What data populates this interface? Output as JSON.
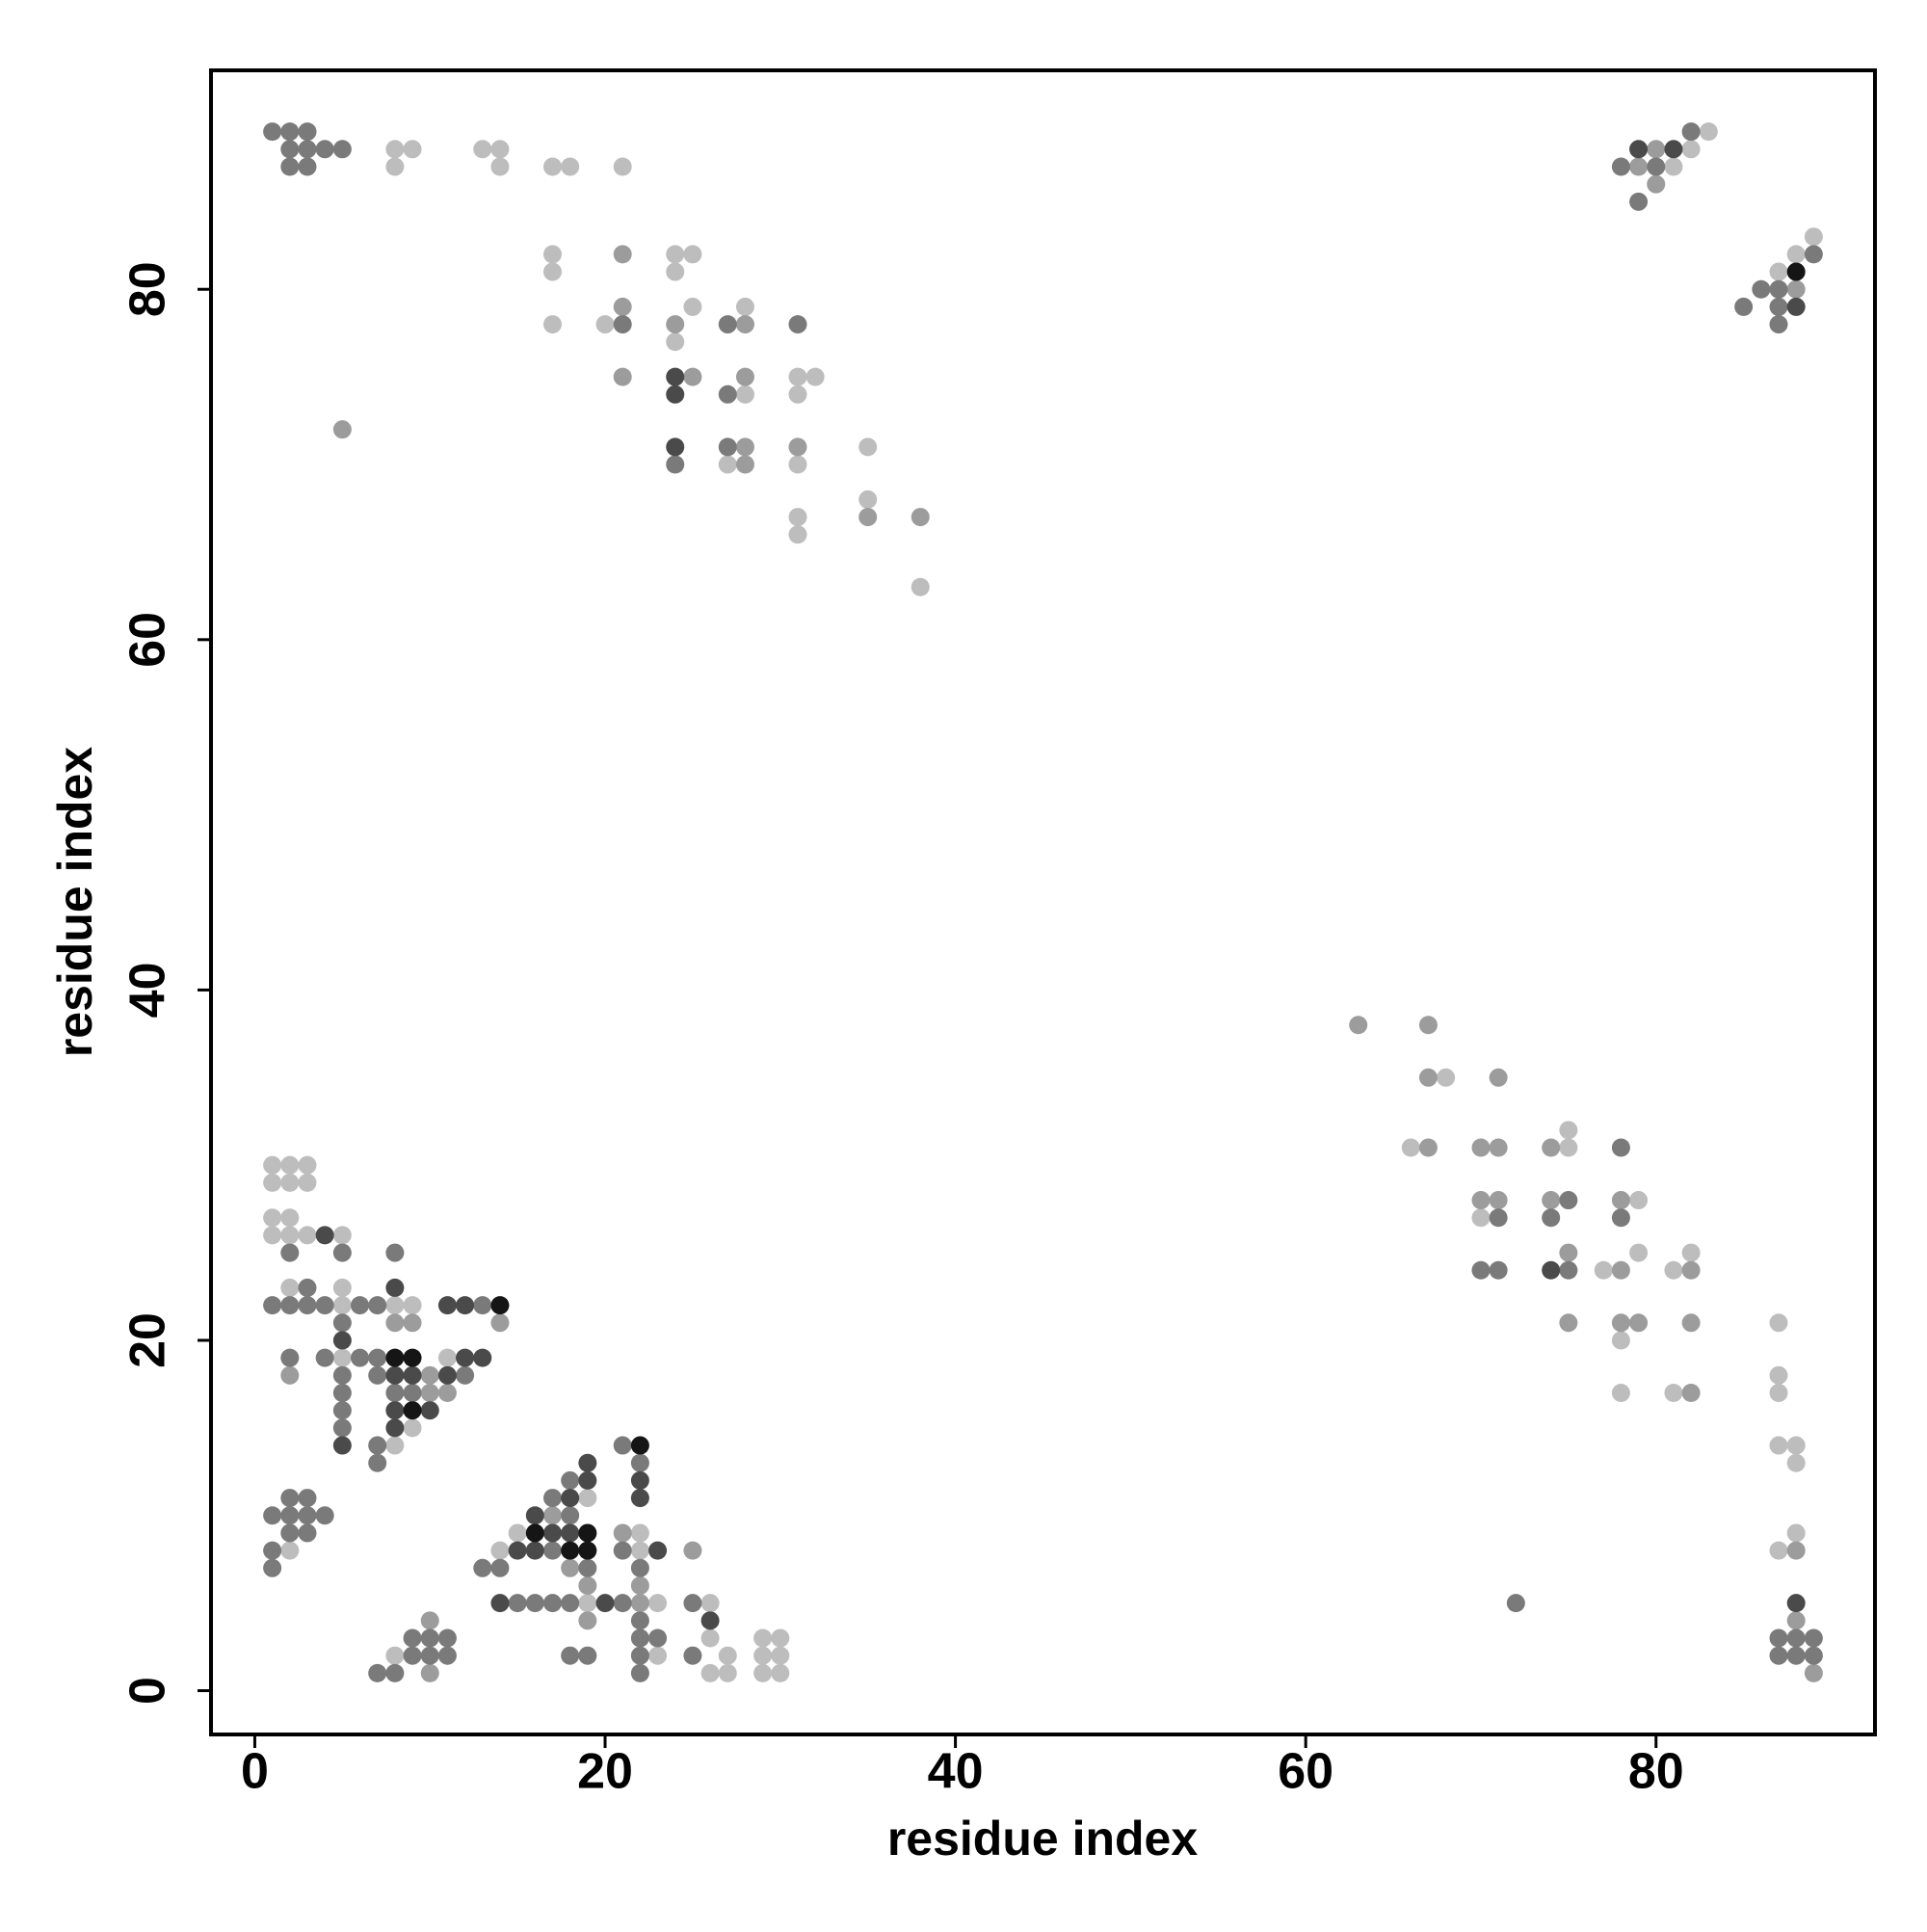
{
  "chart_data": {
    "type": "scatter",
    "xlabel": "residue index",
    "ylabel": "residue index",
    "xlim": [
      -2.5,
      92.5
    ],
    "ylim": [
      -2.5,
      92.5
    ],
    "xticks": [
      0,
      20,
      40,
      60,
      80
    ],
    "yticks": [
      0,
      20,
      40,
      60,
      80
    ],
    "grid": false,
    "series": [
      {
        "color": "#bdbdbd",
        "x": [
          8,
          9,
          13,
          14,
          8,
          14,
          17,
          18,
          21,
          24,
          25,
          17,
          17,
          24,
          25,
          28,
          17,
          20,
          24,
          31,
          32,
          28,
          31,
          35,
          27,
          31,
          35,
          31,
          31,
          38,
          83,
          82,
          81,
          89,
          88,
          87,
          68,
          75,
          66,
          75,
          79,
          70,
          79,
          82,
          77,
          81,
          87,
          78,
          87,
          78,
          81,
          87,
          87,
          88,
          88,
          88,
          87,
          1,
          2,
          3,
          1,
          2,
          3,
          1,
          2,
          1,
          2,
          3,
          5,
          2,
          5,
          5,
          8,
          9,
          5,
          11,
          9,
          8,
          19,
          15,
          22,
          2,
          14,
          22,
          19,
          23,
          26,
          26,
          29,
          30,
          8,
          23,
          27,
          29,
          30,
          26,
          27,
          29,
          30
        ],
        "y": [
          88,
          88,
          88,
          88,
          87,
          87,
          87,
          87,
          87,
          82,
          82,
          82,
          81,
          81,
          79,
          79,
          78,
          78,
          77,
          75,
          75,
          74,
          74,
          71,
          70,
          70,
          68,
          67,
          66,
          63,
          89,
          88,
          87,
          83,
          82,
          81,
          35,
          32,
          31,
          31,
          28,
          27,
          25,
          25,
          24,
          24,
          21,
          20,
          18,
          17,
          17,
          17,
          14,
          14,
          13,
          9,
          8,
          30,
          30,
          30,
          29,
          29,
          29,
          27,
          27,
          26,
          26,
          26,
          26,
          23,
          23,
          22,
          22,
          22,
          19,
          19,
          15,
          14,
          11,
          9,
          9,
          8,
          8,
          8,
          5,
          5,
          5,
          3,
          3,
          3,
          2,
          2,
          2,
          2,
          2,
          1,
          1,
          1,
          1
        ]
      },
      {
        "color": "#9c9c9c",
        "x": [
          21,
          21,
          24,
          28,
          21,
          25,
          28,
          28,
          31,
          28,
          35,
          38,
          5,
          80,
          79,
          80,
          88,
          63,
          67,
          67,
          71,
          67,
          70,
          71,
          74,
          70,
          71,
          74,
          78,
          75,
          78,
          82,
          75,
          78,
          79,
          82,
          82,
          88,
          88,
          89,
          8,
          9,
          14,
          2,
          10,
          10,
          11,
          17,
          21,
          25,
          18,
          19,
          22,
          22,
          10,
          19,
          10
        ],
        "y": [
          82,
          79,
          78,
          78,
          75,
          75,
          75,
          71,
          71,
          70,
          67,
          67,
          72,
          88,
          87,
          86,
          80,
          38,
          38,
          35,
          35,
          31,
          31,
          31,
          31,
          28,
          28,
          28,
          28,
          25,
          24,
          24,
          21,
          21,
          21,
          21,
          17,
          8,
          4,
          1,
          21,
          21,
          21,
          18,
          18,
          17,
          17,
          10,
          9,
          8,
          7,
          6,
          6,
          5,
          4,
          4,
          1
        ]
      },
      {
        "color": "#7a7a7a",
        "x": [
          1,
          2,
          3,
          2,
          3,
          4,
          5,
          2,
          3,
          21,
          27,
          31,
          27,
          27,
          24,
          82,
          78,
          80,
          79,
          89,
          86,
          87,
          85,
          87,
          87,
          78,
          75,
          71,
          74,
          78,
          70,
          71,
          75,
          72,
          87,
          88,
          89,
          87,
          88,
          89,
          2,
          5,
          8,
          3,
          1,
          2,
          3,
          4,
          6,
          7,
          13,
          5,
          2,
          4,
          6,
          7,
          5,
          7,
          12,
          5,
          8,
          9,
          5,
          5,
          7,
          7,
          21,
          22,
          18,
          17,
          1,
          2,
          3,
          4,
          18,
          2,
          3,
          2,
          3,
          1,
          17,
          21,
          1,
          13,
          14,
          19,
          22,
          15,
          16,
          17,
          18,
          21,
          25,
          22,
          9,
          10,
          11,
          22,
          23,
          9,
          10,
          11,
          18,
          19,
          22,
          25,
          7,
          8,
          22
        ],
        "y": [
          89,
          89,
          89,
          88,
          88,
          88,
          88,
          87,
          87,
          78,
          78,
          78,
          74,
          71,
          70,
          89,
          87,
          87,
          85,
          82,
          80,
          80,
          79,
          79,
          78,
          31,
          28,
          27,
          27,
          27,
          24,
          24,
          24,
          5,
          3,
          3,
          3,
          2,
          2,
          2,
          25,
          25,
          25,
          23,
          22,
          22,
          22,
          22,
          22,
          22,
          22,
          21,
          19,
          19,
          19,
          19,
          18,
          18,
          18,
          17,
          17,
          17,
          16,
          15,
          14,
          13,
          14,
          13,
          12,
          11,
          10,
          10,
          10,
          10,
          10,
          11,
          11,
          9,
          9,
          8,
          8,
          8,
          7,
          7,
          7,
          7,
          7,
          5,
          5,
          5,
          5,
          5,
          5,
          4,
          3,
          3,
          3,
          3,
          3,
          2,
          2,
          2,
          2,
          2,
          2,
          2,
          1,
          1,
          1
        ]
      },
      {
        "color": "#4a4a4a",
        "x": [
          24,
          24,
          24,
          79,
          81,
          88,
          74,
          88,
          4,
          8,
          11,
          12,
          5,
          12,
          13,
          8,
          9,
          11,
          8,
          10,
          8,
          5,
          19,
          19,
          22,
          18,
          22,
          16,
          17,
          18,
          15,
          16,
          23,
          14,
          20,
          26
        ],
        "y": [
          75,
          74,
          71,
          88,
          88,
          79,
          24,
          5,
          26,
          23,
          22,
          22,
          20,
          19,
          19,
          18,
          18,
          18,
          16,
          16,
          15,
          14,
          13,
          12,
          12,
          11,
          11,
          10,
          9,
          9,
          8,
          8,
          8,
          5,
          5,
          4
        ]
      },
      {
        "color": "#151515",
        "x": [
          88,
          14,
          8,
          9,
          9,
          22,
          16,
          19,
          18,
          19
        ],
        "y": [
          81,
          22,
          19,
          19,
          16,
          14,
          9,
          9,
          8,
          8
        ]
      }
    ]
  }
}
